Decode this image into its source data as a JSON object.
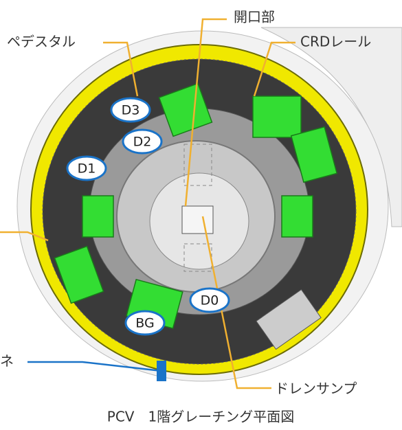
{
  "labels": {
    "opening": "開口部",
    "pedestal": "ペデスタル",
    "crd_rail": "CRDレール",
    "cut_off": "ネ",
    "drain_sump": "ドレンサンプ"
  },
  "tags": {
    "D3": "D3",
    "D2": "D2",
    "D1": "D1",
    "D0": "D0",
    "BG": "BG"
  },
  "caption": "PCV　1階グレーチング平面図"
}
